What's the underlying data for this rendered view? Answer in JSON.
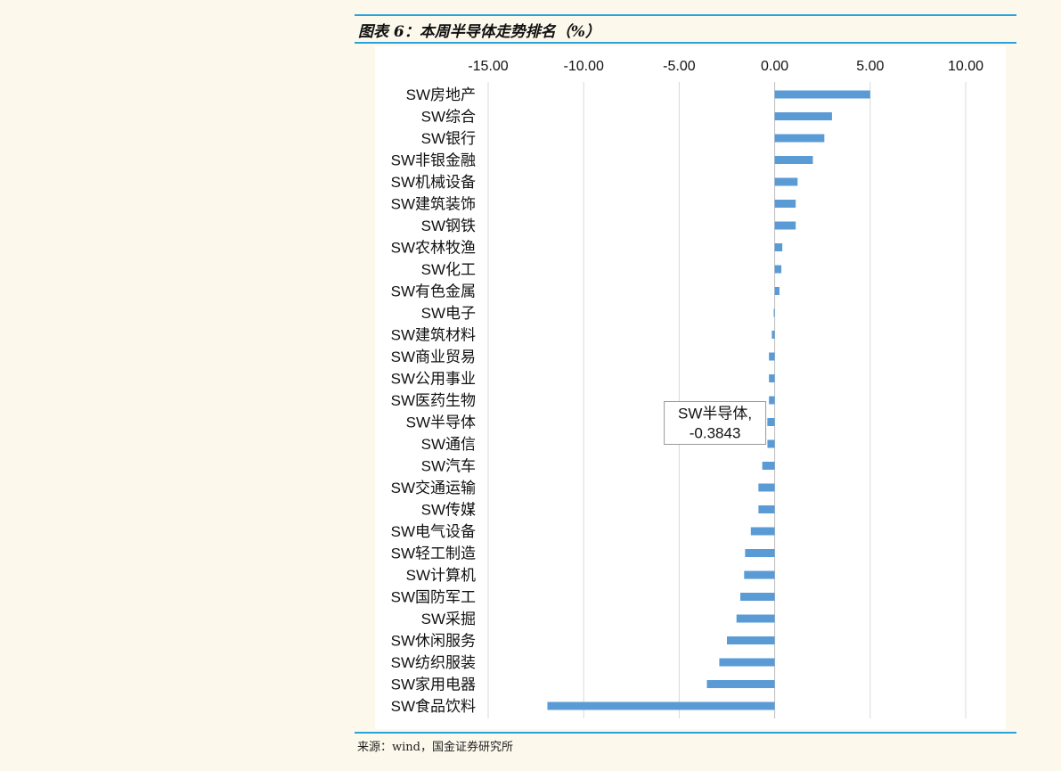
{
  "title": "图表 6：本周半导体走势排名（%）",
  "source": "来源：wind，国金证券研究所",
  "colors": {
    "bar": "#5b9bd5",
    "grid": "#d9d9d9",
    "axis": "#bfbfbf",
    "accent": "#2aa3dc"
  },
  "chart_data": {
    "type": "bar",
    "orientation": "horizontal",
    "title": "本周半导体走势排名（%）",
    "xlabel": "",
    "ylabel": "",
    "xlim": [
      -15,
      10
    ],
    "ticks": [
      "-15.00",
      "-10.00",
      "-5.00",
      "0.00",
      "5.00",
      "10.00"
    ],
    "tick_values": [
      -15,
      -10,
      -5,
      0,
      5,
      10
    ],
    "axis_position": "top",
    "grid": true,
    "categories": [
      "SW房地产",
      "SW综合",
      "SW银行",
      "SW非银金融",
      "SW机械设备",
      "SW建筑装饰",
      "SW钢铁",
      "SW农林牧渔",
      "SW化工",
      "SW有色金属",
      "SW电子",
      "SW建筑材料",
      "SW商业贸易",
      "SW公用事业",
      "SW医药生物",
      "SW半导体",
      "SW通信",
      "SW汽车",
      "SW交通运输",
      "SW传媒",
      "SW电气设备",
      "SW轻工制造",
      "SW计算机",
      "SW国防军工",
      "SW采掘",
      "SW休闲服务",
      "SW纺织服装",
      "SW家用电器",
      "SW食品饮料"
    ],
    "values": [
      5.0,
      3.0,
      2.6,
      2.0,
      1.2,
      1.1,
      1.1,
      0.4,
      0.35,
      0.25,
      -0.05,
      -0.15,
      -0.3,
      -0.3,
      -0.3,
      -0.3843,
      -0.38,
      -0.65,
      -0.85,
      -0.85,
      -1.25,
      -1.55,
      -1.6,
      -1.8,
      -2.0,
      -2.5,
      -2.9,
      -3.55,
      -11.9
    ],
    "annotation": {
      "category": "SW半导体",
      "line1": "SW半导体,",
      "line2": "-0.3843"
    }
  }
}
